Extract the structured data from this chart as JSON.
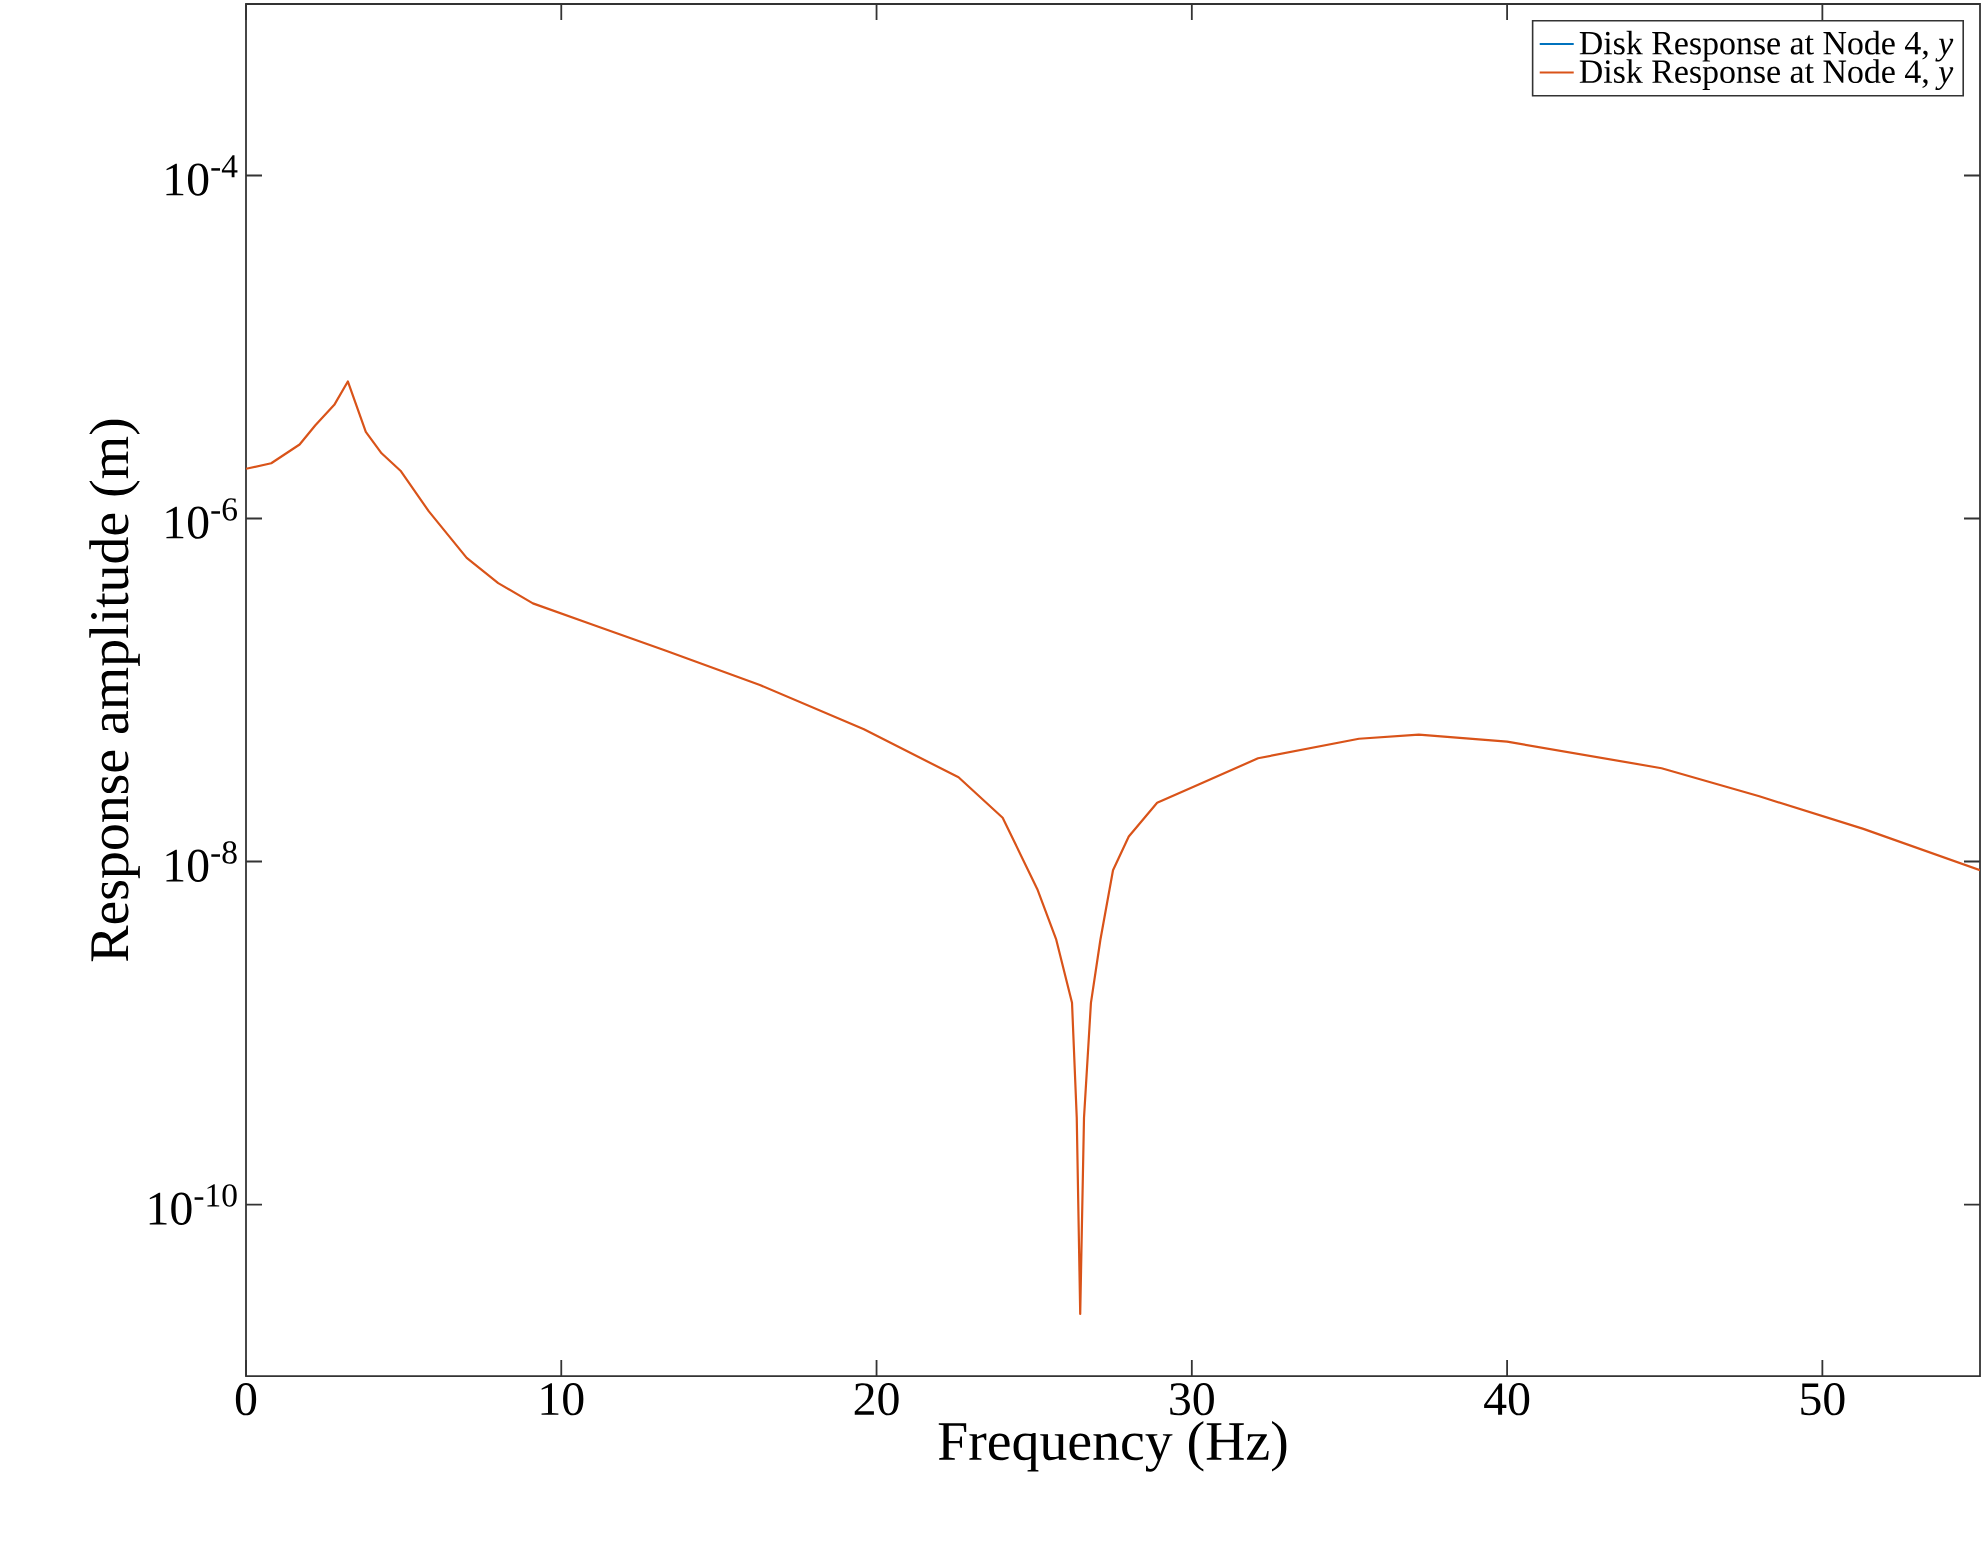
{
  "chart_data": {
    "type": "line",
    "xlabel": "Frequency (Hz)",
    "ylabel": "Response amplitude (m)",
    "log": "y",
    "legend": "top right",
    "grid": false,
    "line_style": "solid",
    "marker": "none",
    "xlim": [
      0,
      55
    ],
    "ylim": [
      1e-11,
      0.001
    ],
    "xticks": [
      0,
      10,
      20,
      30,
      40,
      50
    ],
    "yticks": [
      {
        "value": 1e-10,
        "label": "10$^{-10}$"
      },
      {
        "value": 1e-08,
        "label": "10$^{-8}$"
      },
      {
        "value": 1e-06,
        "label": "10$^{-6}$"
      },
      {
        "value": 0.0001,
        "label": "10$^{-4}$"
      }
    ],
    "x": [
      0,
      0.8,
      1.7,
      2.2,
      2.8,
      3.23,
      3.8,
      4.3,
      4.9,
      5.8,
      7,
      8,
      9.1,
      11,
      13.3,
      16.3,
      19.6,
      22.6,
      24,
      25.1,
      25.7,
      26.2,
      26.35,
      26.46,
      26.58,
      26.8,
      27.1,
      27.5,
      28,
      28.9,
      30.2,
      32.1,
      35.3,
      37.2,
      40,
      44.9,
      48,
      51.3,
      55
    ],
    "series": [
      {
        "name": "Disk Response at Node 4, *y*",
        "color": "#0072bd",
        "values": [
          null,
          null,
          null,
          null,
          null,
          null,
          null,
          null,
          null,
          null,
          null,
          null,
          null,
          null,
          null,
          null,
          null,
          null,
          null,
          null,
          null,
          null,
          null,
          null,
          null,
          null,
          null,
          null,
          null,
          null,
          null,
          null,
          null,
          null,
          null,
          null,
          null,
          null,
          null
        ]
      },
      {
        "name": "Disk Response at Node 4, *y*",
        "color": "#d95319",
        "values": [
          1.95e-06,
          2.1e-06,
          2.7e-06,
          3.5e-06,
          4.6e-06,
          6.3e-06,
          3.2e-06,
          2.4e-06,
          1.9e-06,
          1.1e-06,
          5.9e-07,
          4.2e-07,
          3.2e-07,
          2.4e-07,
          1.7e-07,
          1.07e-07,
          5.9e-08,
          3.1e-08,
          1.8e-08,
          6.9e-09,
          3.5e-09,
          1.5e-09,
          3.2e-10,
          2.3e-11,
          3.2e-10,
          1.5e-09,
          3.5e-09,
          8.9e-09,
          1.4e-08,
          2.2e-08,
          2.8e-08,
          4e-08,
          5.2e-08,
          5.5e-08,
          5e-08,
          3.5e-08,
          2.4e-08,
          1.55e-08,
          8.9e-09
        ]
      }
    ]
  }
}
